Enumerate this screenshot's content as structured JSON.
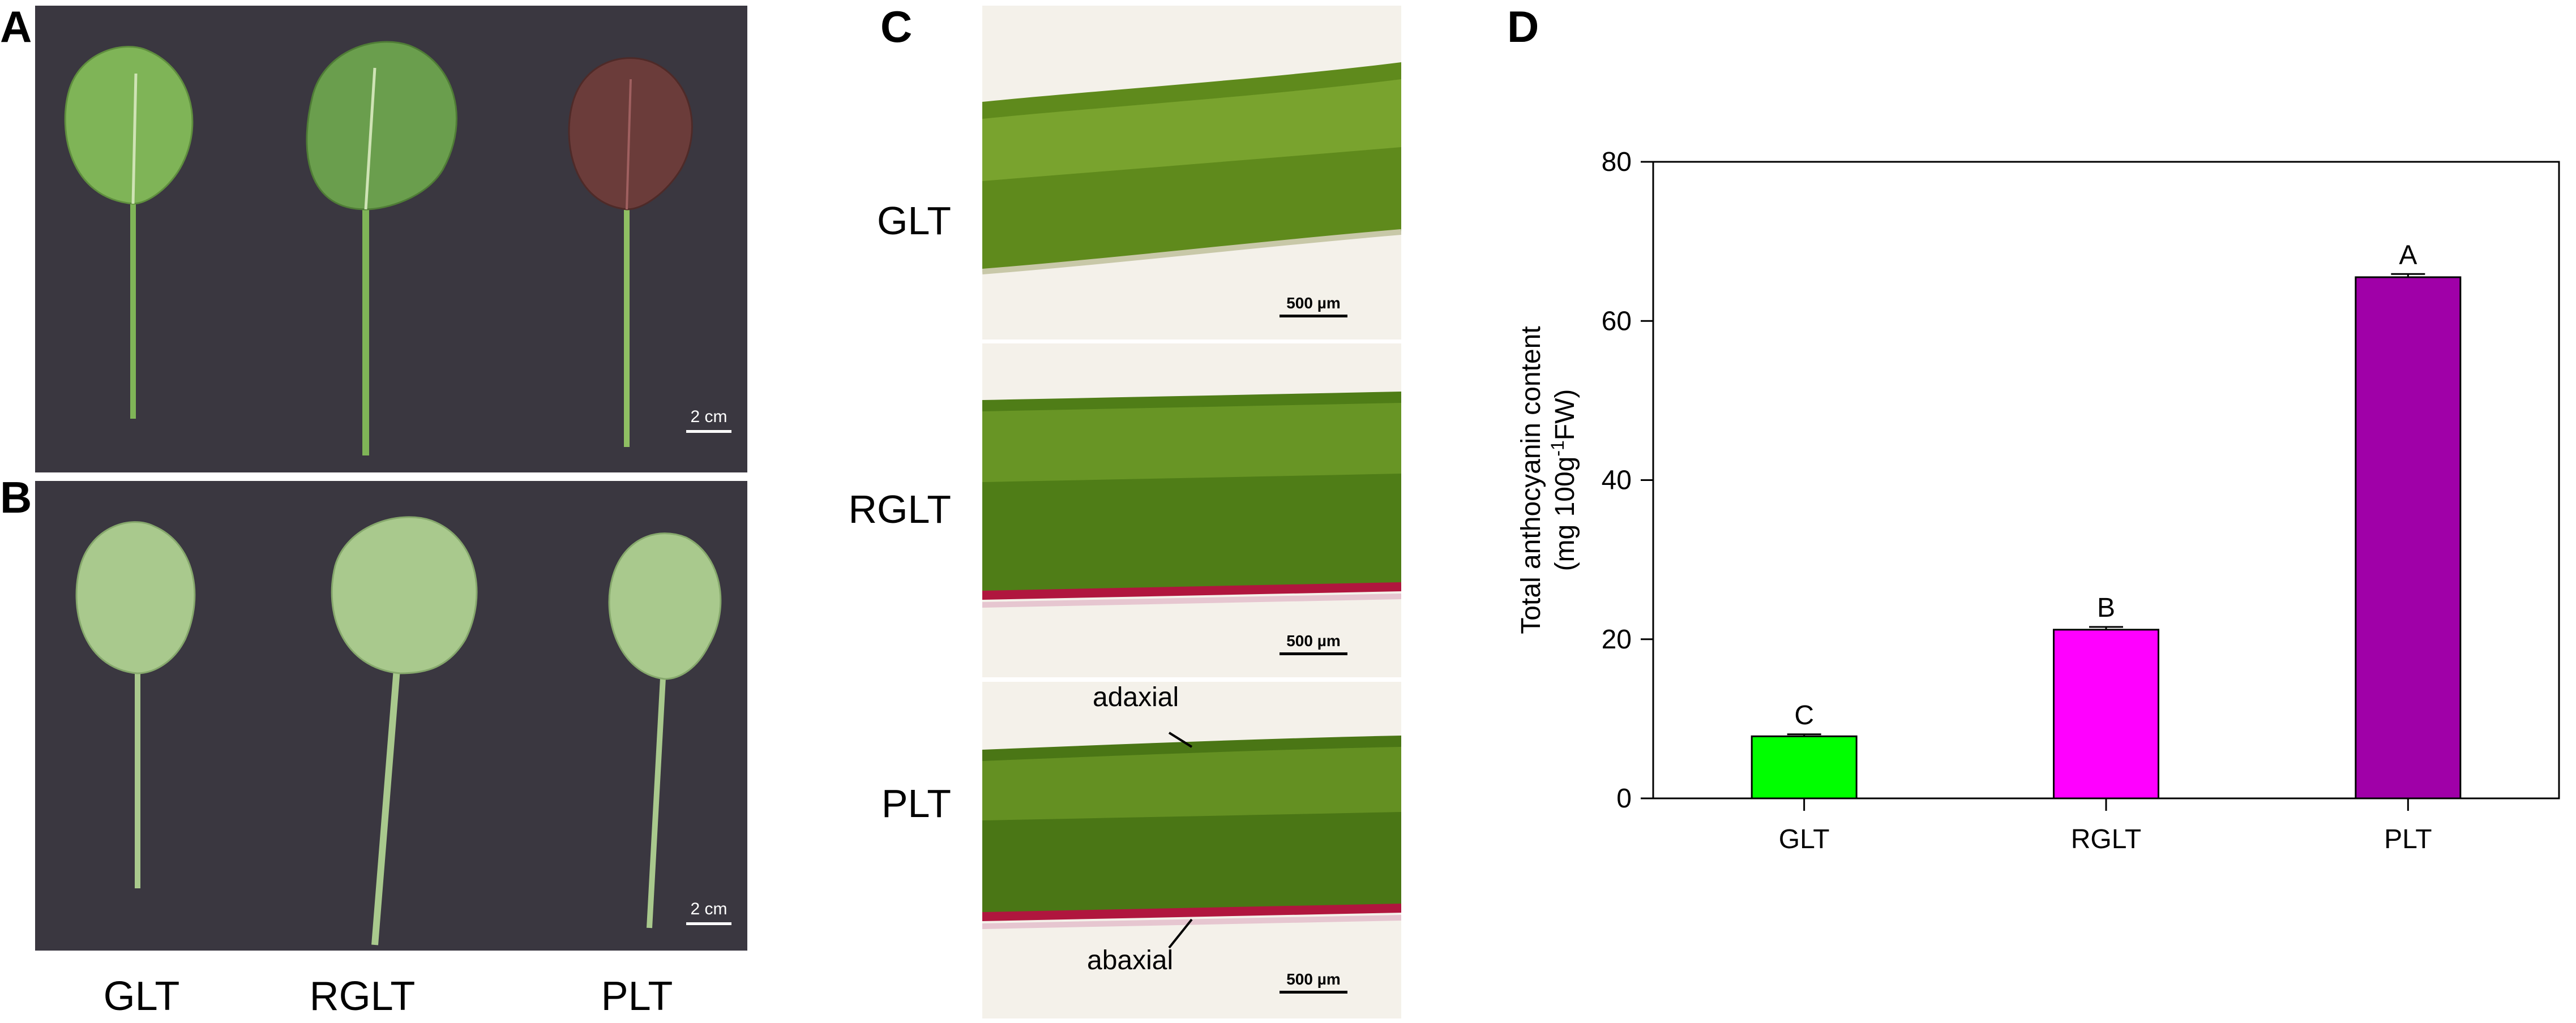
{
  "panels": {
    "a": {
      "letter": "A",
      "scale_label": "2 cm"
    },
    "b": {
      "letter": "B",
      "scale_label": "2 cm"
    },
    "c": {
      "letter": "C",
      "scale_label": "500 µm",
      "annotation_top": "adaxial",
      "annotation_bottom": "abaxial"
    },
    "d": {
      "letter": "D"
    }
  },
  "photo_labels": [
    "GLT",
    "RGLT",
    "PLT"
  ],
  "micro_rows": [
    {
      "label": "GLT",
      "pigment_layer": false
    },
    {
      "label": "RGLT",
      "pigment_layer": true
    },
    {
      "label": "PLT",
      "pigment_layer": true
    }
  ],
  "colors": {
    "photo_background": "#3a3740",
    "leaf_green": "#7fb457",
    "leaf_pale": "#a9c98d",
    "leaf_purple": "#6b3c3a",
    "tissue_green": "#5f8a1c",
    "pigment_red": "#b0163e",
    "bar_glt": "#00ff00",
    "bar_rglt": "#ff00ff",
    "bar_plt": "#a000a8"
  },
  "chart_data": {
    "type": "bar",
    "categories": [
      "GLT",
      "RGLT",
      "PLT"
    ],
    "values": [
      7.8,
      21.2,
      65.5
    ],
    "errors": [
      0.25,
      0.35,
      0.4
    ],
    "significance_letters": [
      "C",
      "B",
      "A"
    ],
    "bar_colors": [
      "#00ff00",
      "#ff00ff",
      "#a000a8"
    ],
    "ylabel_line1": "Total anthocyanin content",
    "ylabel_line2_prefix": "(mg 100g",
    "ylabel_line2_sup": "-1",
    "ylabel_line2_suffix": "FW)",
    "ylim": [
      0,
      80
    ],
    "yticks": [
      0,
      20,
      40,
      60,
      80
    ],
    "grid": false
  }
}
